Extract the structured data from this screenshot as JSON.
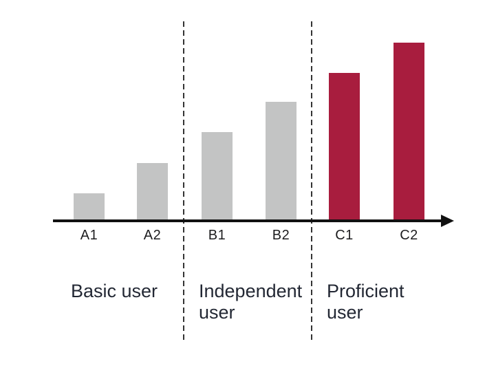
{
  "chart_data": {
    "type": "bar",
    "title": "",
    "xlabel": "",
    "ylabel": "",
    "grid": false,
    "legend": false,
    "categories": [
      "A1",
      "A2",
      "B1",
      "B2",
      "C1",
      "C2"
    ],
    "values": [
      39,
      83,
      128,
      172,
      214,
      258
    ],
    "value_note": "no numeric y-axis shown; bars rise in roughly equal steps of ~44 units per level",
    "bar_colors": [
      "#c3c4c4",
      "#c3c4c4",
      "#c3c4c4",
      "#c3c4c4",
      "#a81d3e",
      "#a81d3e"
    ],
    "groups": [
      {
        "label": "Basic user",
        "categories": [
          "A1",
          "A2"
        ]
      },
      {
        "label": "Independent user",
        "categories": [
          "B1",
          "B2"
        ]
      },
      {
        "label": "Proficient user",
        "categories": [
          "C1",
          "C2"
        ]
      }
    ],
    "separators": 2,
    "axis_arrow": "right"
  },
  "colors": {
    "background": "#ffffff",
    "bar_gray": "#c3c4c4",
    "bar_red": "#a81d3e",
    "axis": "#111111",
    "dashed_line": "#333333",
    "tick_text": "#1d1d1f",
    "group_text": "#232834"
  }
}
